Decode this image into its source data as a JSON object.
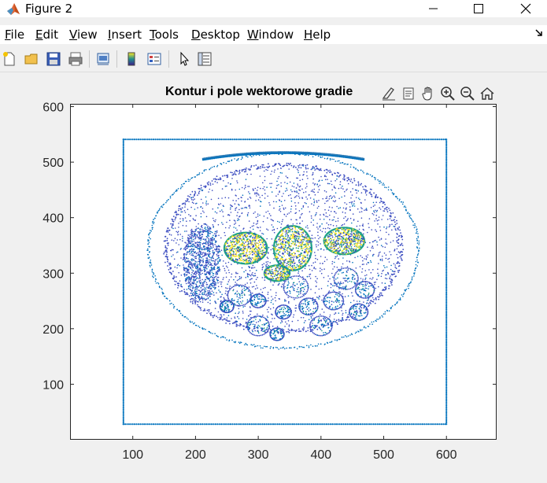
{
  "window": {
    "title": "Figure 2",
    "controls": [
      "minimize",
      "maximize",
      "close"
    ]
  },
  "menu": {
    "items": [
      {
        "label": "File",
        "accel": "F",
        "rest": "ile"
      },
      {
        "label": "Edit",
        "accel": "E",
        "rest": "dit"
      },
      {
        "label": "View",
        "accel": "V",
        "rest": "iew"
      },
      {
        "label": "Insert",
        "accel": "I",
        "rest": "nsert"
      },
      {
        "label": "Tools",
        "accel": "T",
        "rest": "ools"
      },
      {
        "label": "Desktop",
        "accel": "D",
        "rest": "esktop"
      },
      {
        "label": "Window",
        "accel": "W",
        "rest": "indow"
      },
      {
        "label": "Help",
        "accel": "H",
        "rest": "elp"
      }
    ]
  },
  "toolbar": {
    "buttons": [
      "new-figure-icon",
      "open-file-icon",
      "save-icon",
      "print-icon",
      "link-plot-icon",
      "insert-colorbar-icon",
      "insert-legend-icon",
      "edit-plot-arrow-icon",
      "property-inspector-icon"
    ]
  },
  "axes_toolbar": {
    "buttons": [
      "brush-icon",
      "data-tips-icon",
      "pan-hand-icon",
      "zoom-in-icon",
      "zoom-out-icon",
      "restore-view-icon"
    ]
  },
  "chart_data": {
    "type": "scatter",
    "title": "Kontur i pole wektorowe gradie",
    "xlabel": "",
    "ylabel": "",
    "xlim": [
      0,
      680
    ],
    "ylim": [
      0,
      605
    ],
    "xticks": [
      100,
      200,
      300,
      400,
      500,
      600
    ],
    "yticks": [
      100,
      200,
      300,
      400,
      500,
      600
    ],
    "grid": false,
    "frame_rect": {
      "x": [
        85,
        600
      ],
      "y": [
        28,
        541
      ]
    },
    "palette": [
      "#0072bd",
      "#3b4cc0",
      "#1fa187",
      "#fde725",
      "#2c7bb6"
    ]
  }
}
